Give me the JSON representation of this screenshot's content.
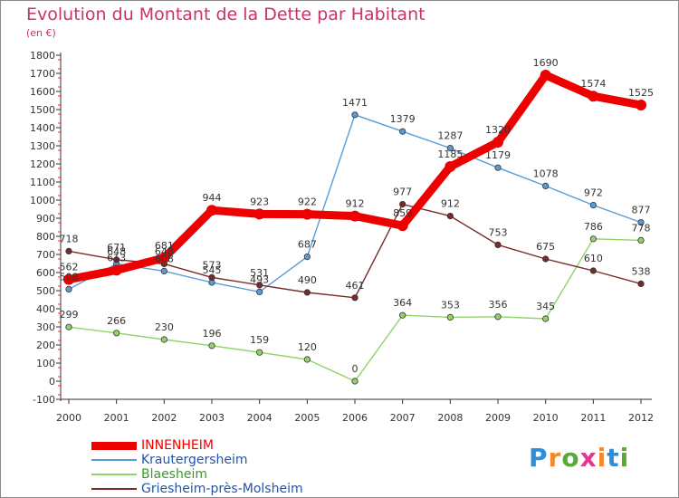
{
  "title": "Evolution du Montant de la Dette par Habitant",
  "unit": "(en €)",
  "logo": {
    "text": "Proxiti",
    "colors": [
      "#2f8fd6",
      "#f2892b",
      "#5aa83a",
      "#e23a8f",
      "#f2892b",
      "#2f8fd6",
      "#5aa83a"
    ]
  },
  "chart_data": {
    "type": "line",
    "title": "Evolution du Montant de la Dette par Habitant",
    "ylabel": "(en €)",
    "xlabel": "",
    "x": [
      "2000",
      "2001",
      "2002",
      "2003",
      "2004",
      "2005",
      "2006",
      "2007",
      "2008",
      "2009",
      "2010",
      "2011",
      "2012"
    ],
    "ylim": [
      -100,
      1800
    ],
    "yticks": [
      "-100",
      "0",
      "100",
      "200",
      "300",
      "400",
      "500",
      "600",
      "700",
      "800",
      "900",
      "1000",
      "1100",
      "1200",
      "1300",
      "1400",
      "1500",
      "1600",
      "1700",
      "1800"
    ],
    "grid": false,
    "legend_position": "bottom-left",
    "series": [
      {
        "name": "INNENHEIM",
        "color": "#ee0000",
        "values": [
          562,
          613,
          681,
          944,
          923,
          922,
          912,
          859,
          1185,
          1320,
          1690,
          1574,
          1525
        ],
        "labels": [
          "562",
          "613",
          "681",
          "944",
          "923",
          "922",
          "912",
          "859",
          "1185",
          "1320",
          "1690",
          "1574",
          "1525"
        ]
      },
      {
        "name": "Krautergersheim",
        "color": "#5b9bd5",
        "values": [
          508,
          648,
          608,
          545,
          493,
          687,
          1471,
          1379,
          1287,
          1179,
          1078,
          972,
          877
        ],
        "labels": [
          "508",
          "648",
          "608",
          "545",
          "493",
          "687",
          "1471",
          "1379",
          "1287",
          "1179",
          "1078",
          "972",
          "877"
        ]
      },
      {
        "name": "Blaesheim",
        "color": "#8fd468",
        "values": [
          299,
          266,
          230,
          196,
          159,
          120,
          0,
          364,
          353,
          356,
          345,
          786,
          778
        ],
        "labels": [
          "299",
          "266",
          "230",
          "196",
          "159",
          "120",
          "0",
          "364",
          "353",
          "356",
          "345",
          "786",
          "778"
        ]
      },
      {
        "name": "Griesheim-près-Molsheim",
        "color": "#7a2a2a",
        "values": [
          718,
          671,
          648,
          573,
          531,
          490,
          461,
          977,
          912,
          753,
          675,
          610,
          538
        ],
        "labels": [
          "718",
          "671",
          "648",
          "573",
          "531",
          "490",
          "461",
          "977",
          "912",
          "753",
          "675",
          "610",
          "538"
        ]
      }
    ]
  },
  "legend": [
    {
      "label": "INNENHEIM",
      "color": "#ee0000",
      "text_color": "#ee0000",
      "thickness": 9
    },
    {
      "label": "Krautergersheim",
      "color": "#5b9bd5",
      "text_color": "#2255aa",
      "thickness": 2
    },
    {
      "label": "Blaesheim",
      "color": "#8fd468",
      "text_color": "#3a9a2a",
      "thickness": 2
    },
    {
      "label": "Griesheim-près-Molsheim",
      "color": "#7a2a2a",
      "text_color": "#2255aa",
      "thickness": 2
    }
  ]
}
